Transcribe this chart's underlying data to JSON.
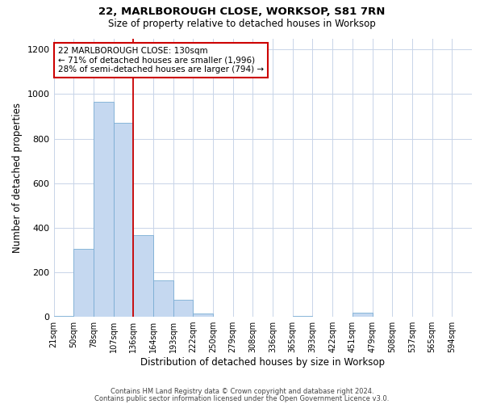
{
  "title1": "22, MARLBOROUGH CLOSE, WORKSOP, S81 7RN",
  "title2": "Size of property relative to detached houses in Worksop",
  "xlabel": "Distribution of detached houses by size in Worksop",
  "ylabel": "Number of detached properties",
  "bar_color": "#c5d8f0",
  "bar_edge_color": "#7aadd4",
  "background_color": "#ffffff",
  "grid_color": "#c8d4e8",
  "bins": [
    "21sqm",
    "50sqm",
    "78sqm",
    "107sqm",
    "136sqm",
    "164sqm",
    "193sqm",
    "222sqm",
    "250sqm",
    "279sqm",
    "308sqm",
    "336sqm",
    "365sqm",
    "393sqm",
    "422sqm",
    "451sqm",
    "479sqm",
    "508sqm",
    "537sqm",
    "565sqm",
    "594sqm"
  ],
  "values": [
    5,
    305,
    965,
    870,
    365,
    165,
    75,
    15,
    0,
    0,
    0,
    0,
    5,
    0,
    0,
    20,
    0,
    0,
    0,
    0,
    0
  ],
  "ylim": [
    0,
    1250
  ],
  "yticks": [
    0,
    200,
    400,
    600,
    800,
    1000,
    1200
  ],
  "annotation_label": "22 MARLBOROUGH CLOSE: 130sqm",
  "annotation_line1": "← 71% of detached houses are smaller (1,996)",
  "annotation_line2": "28% of semi-detached houses are larger (794) →",
  "footnote1": "Contains HM Land Registry data © Crown copyright and database right 2024.",
  "footnote2": "Contains public sector information licensed under the Open Government Licence v3.0.",
  "red_line_color": "#cc0000",
  "annotation_box_facecolor": "#ffffff",
  "annotation_box_edgecolor": "#cc0000",
  "red_line_bin_index": 4
}
